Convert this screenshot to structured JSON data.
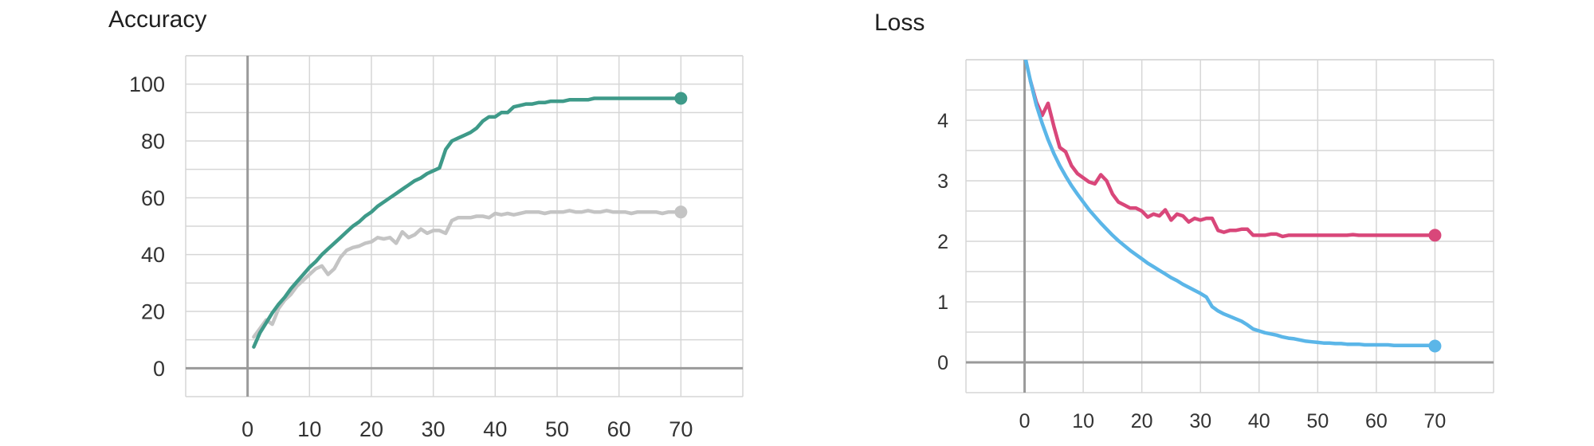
{
  "chart_data": [
    {
      "type": "line",
      "title": "Accuracy",
      "xlabel": "",
      "ylabel": "",
      "xlim": [
        -10,
        80
      ],
      "ylim": [
        -10,
        110
      ],
      "x_ticks": [
        0,
        10,
        20,
        30,
        40,
        50,
        60,
        70
      ],
      "y_ticks": [
        0,
        20,
        40,
        60,
        80,
        100
      ],
      "grid": true,
      "series": [
        {
          "color": "#c4c4c4",
          "x": [
            1,
            2,
            3,
            4,
            5,
            6,
            7,
            8,
            9,
            10,
            11,
            12,
            13,
            14,
            15,
            16,
            17,
            18,
            19,
            20,
            21,
            22,
            23,
            24,
            25,
            26,
            27,
            28,
            29,
            30,
            31,
            32,
            33,
            34,
            35,
            36,
            37,
            38,
            39,
            40,
            41,
            42,
            43,
            44,
            45,
            46,
            47,
            48,
            49,
            50,
            51,
            52,
            53,
            54,
            55,
            56,
            57,
            58,
            59,
            60,
            61,
            62,
            63,
            64,
            65,
            66,
            67,
            68,
            69,
            70
          ],
          "values": [
            11,
            14,
            17,
            15.5,
            21,
            24,
            26,
            29,
            31,
            33,
            35,
            36,
            33,
            35,
            39,
            41.5,
            42.5,
            43,
            44,
            44.5,
            46,
            45.5,
            46,
            44,
            48,
            46,
            47,
            49,
            47.5,
            48.5,
            48.5,
            47.5,
            52,
            53,
            53,
            53,
            53.5,
            53.5,
            53,
            54.5,
            54,
            54.5,
            54,
            54.5,
            55,
            55,
            55,
            54.5,
            55,
            55,
            55,
            55.5,
            55,
            55,
            55.5,
            55,
            55,
            55.5,
            55,
            55,
            55,
            54.5,
            55,
            55,
            55,
            55,
            54.5,
            55,
            55,
            55
          ]
        },
        {
          "color": "#3e9a89",
          "x": [
            1,
            2,
            3,
            4,
            5,
            6,
            7,
            8,
            9,
            10,
            11,
            12,
            13,
            14,
            15,
            16,
            17,
            18,
            19,
            20,
            21,
            22,
            23,
            24,
            25,
            26,
            27,
            28,
            29,
            30,
            31,
            32,
            33,
            34,
            35,
            36,
            37,
            38,
            39,
            40,
            41,
            42,
            43,
            44,
            45,
            46,
            47,
            48,
            49,
            50,
            51,
            52,
            53,
            54,
            55,
            56,
            57,
            58,
            59,
            60,
            61,
            62,
            63,
            64,
            65,
            66,
            67,
            68,
            69,
            70
          ],
          "values": [
            7.5,
            12.5,
            16,
            19.5,
            22.5,
            25,
            28,
            30.5,
            33,
            35.5,
            37.5,
            40,
            42,
            44,
            46,
            48,
            50,
            51.5,
            53.5,
            55,
            57,
            58.5,
            60,
            61.5,
            63,
            64.5,
            66,
            67,
            68.5,
            69.5,
            70.5,
            77,
            80,
            81,
            82,
            83,
            84.5,
            87,
            88.5,
            88.5,
            90,
            90,
            92,
            92.5,
            93,
            93,
            93.5,
            93.5,
            94,
            94,
            94,
            94.5,
            94.5,
            94.5,
            94.5,
            95,
            95,
            95,
            95,
            95,
            95,
            95,
            95,
            95,
            95,
            95,
            95,
            95,
            95,
            95
          ]
        }
      ]
    },
    {
      "type": "line",
      "title": "Loss",
      "xlabel": "",
      "ylabel": "",
      "xlim": [
        -10,
        80
      ],
      "ylim": [
        -0.5,
        5
      ],
      "x_ticks": [
        0,
        10,
        20,
        30,
        40,
        50,
        60,
        70
      ],
      "y_ticks": [
        0,
        1,
        2,
        3,
        4
      ],
      "grid": true,
      "series": [
        {
          "color": "#d9477a",
          "x": [
            1,
            2,
            3,
            4,
            5,
            6,
            7,
            8,
            9,
            10,
            11,
            12,
            13,
            14,
            15,
            16,
            17,
            18,
            19,
            20,
            21,
            22,
            23,
            24,
            25,
            26,
            27,
            28,
            29,
            30,
            31,
            32,
            33,
            34,
            35,
            36,
            37,
            38,
            39,
            40,
            41,
            42,
            43,
            44,
            45,
            46,
            47,
            48,
            49,
            50,
            51,
            52,
            53,
            54,
            55,
            56,
            57,
            58,
            59,
            60,
            61,
            62,
            63,
            64,
            65,
            66,
            67,
            68,
            69,
            70
          ],
          "values": [
            4.65,
            4.3,
            4.08,
            4.28,
            3.9,
            3.55,
            3.48,
            3.25,
            3.12,
            3.05,
            2.98,
            2.95,
            3.1,
            3,
            2.78,
            2.65,
            2.6,
            2.55,
            2.55,
            2.5,
            2.4,
            2.45,
            2.42,
            2.52,
            2.35,
            2.45,
            2.42,
            2.32,
            2.38,
            2.35,
            2.38,
            2.38,
            2.18,
            2.15,
            2.18,
            2.18,
            2.2,
            2.2,
            2.1,
            2.1,
            2.1,
            2.12,
            2.12,
            2.08,
            2.1,
            2.1,
            2.1,
            2.1,
            2.1,
            2.1,
            2.1,
            2.1,
            2.1,
            2.1,
            2.1,
            2.11,
            2.1,
            2.1,
            2.1,
            2.1,
            2.1,
            2.1,
            2.1,
            2.1,
            2.1,
            2.1,
            2.1,
            2.1,
            2.1,
            2.1
          ]
        },
        {
          "color": "#5bb6e8",
          "x": [
            0.2,
            1,
            2,
            3,
            4,
            5,
            6,
            7,
            8,
            9,
            10,
            11,
            12,
            13,
            14,
            15,
            16,
            17,
            18,
            19,
            20,
            21,
            22,
            23,
            24,
            25,
            26,
            27,
            28,
            29,
            30,
            31,
            32,
            33,
            34,
            35,
            36,
            37,
            38,
            39,
            40,
            41,
            42,
            43,
            44,
            45,
            46,
            47,
            48,
            49,
            50,
            51,
            52,
            53,
            54,
            55,
            56,
            57,
            58,
            59,
            60,
            61,
            62,
            63,
            64,
            65,
            66,
            67,
            68,
            69,
            70
          ],
          "values": [
            5.0,
            4.65,
            4.25,
            3.95,
            3.68,
            3.45,
            3.25,
            3.08,
            2.92,
            2.78,
            2.65,
            2.52,
            2.41,
            2.3,
            2.2,
            2.1,
            2.01,
            1.93,
            1.85,
            1.78,
            1.71,
            1.64,
            1.58,
            1.52,
            1.46,
            1.4,
            1.35,
            1.29,
            1.24,
            1.19,
            1.14,
            1.08,
            0.92,
            0.85,
            0.8,
            0.76,
            0.72,
            0.68,
            0.62,
            0.55,
            0.52,
            0.49,
            0.47,
            0.45,
            0.42,
            0.4,
            0.39,
            0.37,
            0.35,
            0.34,
            0.33,
            0.32,
            0.32,
            0.31,
            0.31,
            0.3,
            0.3,
            0.3,
            0.29,
            0.29,
            0.29,
            0.29,
            0.29,
            0.28,
            0.28,
            0.28,
            0.28,
            0.28,
            0.28,
            0.28,
            0.27
          ]
        }
      ]
    }
  ]
}
